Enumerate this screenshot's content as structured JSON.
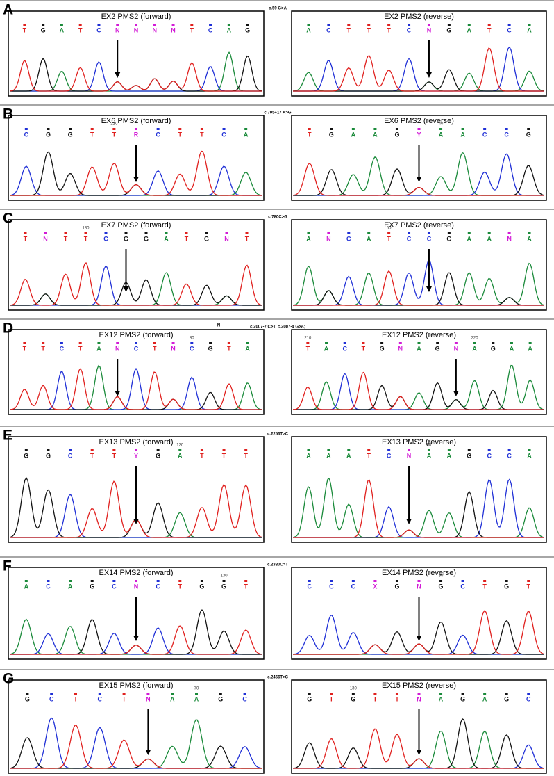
{
  "panels": [
    {
      "letter": "A",
      "mutation": "c.59 G>A",
      "left": {
        "title": "EX2 PMS2 (forward)",
        "bases": [
          "T",
          "G",
          "A",
          "T",
          "C",
          "N",
          "N",
          "N",
          "N",
          "T",
          "C",
          "A",
          "G"
        ],
        "numbers": [
          null,
          null,
          null,
          null,
          null,
          null,
          null,
          null,
          null,
          null,
          null,
          null,
          null
        ]
      },
      "right": {
        "title": "EX2 PMS2 (reverse)",
        "bases": [
          "A",
          "C",
          "T",
          "T",
          "T",
          "C",
          "N",
          "G",
          "A",
          "T",
          "C",
          "A"
        ],
        "numbers": [
          null,
          null,
          null,
          null,
          null,
          null,
          null,
          null,
          null,
          null,
          null,
          null
        ]
      }
    },
    {
      "letter": "B",
      "mutation": "c.705+17 A>G",
      "left": {
        "title": "EX6 PMS2 (forward)",
        "bases": [
          "C",
          "G",
          "G",
          "T",
          "T",
          "R",
          "C",
          "T",
          "T",
          "C",
          "A"
        ],
        "numbers": [
          null,
          null,
          null,
          null,
          "220",
          null,
          null,
          null,
          null,
          null,
          null
        ]
      },
      "right": {
        "title": "EX6 PMS2 (reverse)",
        "bases": [
          "T",
          "G",
          "A",
          "A",
          "G",
          "Y",
          "A",
          "A",
          "C",
          "C",
          "G"
        ],
        "numbers": [
          null,
          null,
          null,
          null,
          null,
          null,
          "40",
          null,
          null,
          null,
          null
        ]
      }
    },
    {
      "letter": "C",
      "mutation": "c.780C>G",
      "left": {
        "title": "EX7 PMS2 (forward)",
        "bases": [
          "T",
          "N",
          "T",
          "T",
          "C",
          "G",
          "G",
          "A",
          "T",
          "G",
          "N",
          "T"
        ],
        "numbers": [
          null,
          null,
          null,
          "130",
          null,
          null,
          null,
          null,
          null,
          null,
          null,
          null
        ]
      },
      "right": {
        "title": "EX7 PMS2 (reverse)",
        "bases": [
          "A",
          "N",
          "C",
          "A",
          "T",
          "C",
          "C",
          "G",
          "A",
          "A",
          "N",
          "A"
        ],
        "numbers": [
          null,
          null,
          null,
          null,
          "50",
          null,
          null,
          null,
          null,
          null,
          null,
          null
        ]
      }
    },
    {
      "letter": "D",
      "mutation": "c.2007-7 C>T; c.2007-4 G>A;",
      "note": "N",
      "left": {
        "title": "EX12 PMS2 (forward)",
        "bases": [
          "T",
          "T",
          "C",
          "T",
          "A",
          "N",
          "C",
          "T",
          "N",
          "C",
          "G",
          "T",
          "A"
        ],
        "numbers": [
          null,
          null,
          null,
          null,
          null,
          null,
          null,
          null,
          null,
          "80",
          null,
          null,
          null
        ]
      },
      "right": {
        "title": "EX12 PMS2 (reverse)",
        "bases": [
          "T",
          "A",
          "C",
          "T",
          "G",
          "N",
          "A",
          "G",
          "N",
          "A",
          "G",
          "A",
          "A"
        ],
        "numbers": [
          "210",
          null,
          null,
          null,
          null,
          null,
          null,
          null,
          null,
          "220",
          null,
          null,
          null
        ]
      }
    },
    {
      "letter": "E",
      "mutation": "c.2253T>C",
      "left": {
        "title": "EX13 PMS2 (forward)",
        "bases": [
          "G",
          "G",
          "C",
          "T",
          "T",
          "Y",
          "G",
          "A",
          "T",
          "T",
          "T"
        ],
        "numbers": [
          null,
          null,
          null,
          null,
          null,
          null,
          null,
          "120",
          null,
          null,
          null
        ]
      },
      "right": {
        "title": "EX13 PMS2 (reverse)",
        "bases": [
          "A",
          "A",
          "A",
          "T",
          "C",
          "N",
          "A",
          "A",
          "G",
          "C",
          "C",
          "A"
        ],
        "numbers": [
          null,
          null,
          null,
          null,
          null,
          null,
          "90",
          null,
          null,
          null,
          null,
          null
        ]
      }
    },
    {
      "letter": "F",
      "mutation": "c.2380C>T",
      "left": {
        "title": "EX14 PMS2 (forward)",
        "bases": [
          "A",
          "C",
          "A",
          "G",
          "C",
          "N",
          "C",
          "T",
          "G",
          "G",
          "T"
        ],
        "numbers": [
          null,
          null,
          null,
          null,
          null,
          null,
          null,
          null,
          null,
          "130",
          null
        ]
      },
      "right": {
        "title": "EX14 PMS2 (reverse)",
        "bases": [
          "C",
          "C",
          "C",
          "X",
          "G",
          "N",
          "G",
          "C",
          "T",
          "G",
          "T"
        ],
        "numbers": [
          null,
          null,
          null,
          null,
          null,
          null,
          "90",
          null,
          null,
          null,
          null
        ]
      }
    },
    {
      "letter": "G",
      "mutation": "c.2466T>C",
      "left": {
        "title": "EX15 PMS2 (forward)",
        "bases": [
          "G",
          "C",
          "T",
          "C",
          "T",
          "N",
          "A",
          "A",
          "G",
          "C"
        ],
        "numbers": [
          null,
          null,
          null,
          null,
          null,
          null,
          null,
          "70",
          null,
          null
        ]
      },
      "right": {
        "title": "EX15 PMS2 (reverse)",
        "bases": [
          "G",
          "T",
          "G",
          "T",
          "T",
          "N",
          "A",
          "G",
          "A",
          "G",
          "C"
        ],
        "numbers": [
          null,
          null,
          "130",
          null,
          null,
          null,
          null,
          null,
          null,
          null,
          null
        ]
      }
    }
  ]
}
